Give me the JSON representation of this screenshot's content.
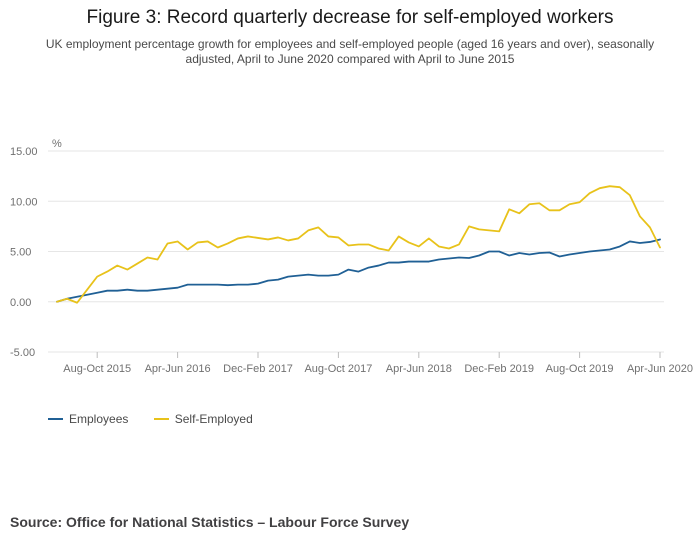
{
  "title": "Figure 3: Record quarterly decrease for self-employed workers",
  "subtitle": "UK employment percentage growth for employees and self-employed people (aged 16 years and over), seasonally adjusted, April to June 2020 compared with April to June 2015",
  "source": "Source: Office for National Statistics – Labour Force Survey",
  "colors": {
    "employees": "#206095",
    "self_employed": "#e8c21a",
    "grid": "#e6e6e6",
    "axis_text": "#707070"
  },
  "chart_data": {
    "type": "line",
    "unit_label": "%",
    "ylim": [
      -5,
      15
    ],
    "yticks": [
      "15.00",
      "10.00",
      "5.00",
      "0.00",
      "-5.00"
    ],
    "grid": true,
    "legend": "bottom-left",
    "x_ticks": [
      {
        "index": 4,
        "label": "Aug-Oct 2015"
      },
      {
        "index": 12,
        "label": "Apr-Jun 2016"
      },
      {
        "index": 20,
        "label": "Dec-Feb 2017"
      },
      {
        "index": 28,
        "label": "Aug-Oct 2017"
      },
      {
        "index": 36,
        "label": "Apr-Jun 2018"
      },
      {
        "index": 44,
        "label": "Dec-Feb 2019"
      },
      {
        "index": 52,
        "label": "Aug-Oct 2019"
      },
      {
        "index": 60,
        "label": "Apr-Jun 2020"
      }
    ],
    "series": [
      {
        "name": "Employees",
        "values": [
          0.0,
          0.3,
          0.5,
          0.7,
          0.9,
          1.1,
          1.1,
          1.2,
          1.1,
          1.1,
          1.2,
          1.3,
          1.4,
          1.7,
          1.7,
          1.7,
          1.7,
          1.65,
          1.7,
          1.7,
          1.8,
          2.1,
          2.2,
          2.5,
          2.6,
          2.7,
          2.6,
          2.6,
          2.7,
          3.2,
          3.0,
          3.4,
          3.6,
          3.9,
          3.9,
          4.0,
          4.0,
          4.0,
          4.2,
          4.3,
          4.4,
          4.35,
          4.6,
          5.0,
          5.0,
          4.6,
          4.85,
          4.7,
          4.85,
          4.9,
          4.5,
          4.7,
          4.85,
          5.0,
          5.1,
          5.2,
          5.5,
          6.0,
          5.85,
          5.95,
          6.2
        ]
      },
      {
        "name": "Self-Employed",
        "values": [
          0.0,
          0.3,
          -0.1,
          1.2,
          2.5,
          3.0,
          3.6,
          3.2,
          3.8,
          4.4,
          4.2,
          5.8,
          6.0,
          5.2,
          5.9,
          6.0,
          5.4,
          5.8,
          6.3,
          6.5,
          6.35,
          6.2,
          6.4,
          6.1,
          6.3,
          7.1,
          7.4,
          6.5,
          6.4,
          5.6,
          5.7,
          5.7,
          5.3,
          5.1,
          6.5,
          5.9,
          5.5,
          6.3,
          5.5,
          5.3,
          5.7,
          7.5,
          7.2,
          7.1,
          7.0,
          9.2,
          8.8,
          9.7,
          9.8,
          9.1,
          9.1,
          9.7,
          9.9,
          10.8,
          11.3,
          11.5,
          11.4,
          10.6,
          8.5,
          7.4,
          5.4
        ]
      }
    ]
  }
}
